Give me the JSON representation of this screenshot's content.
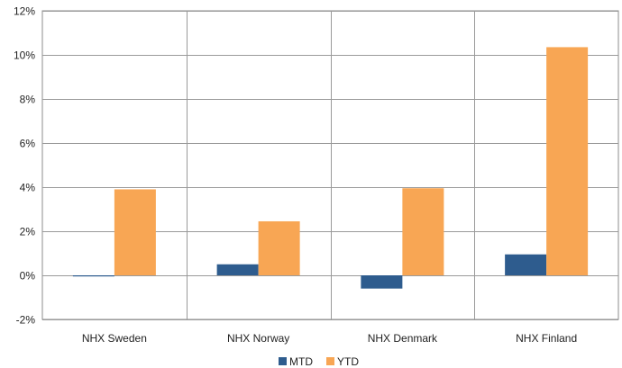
{
  "chart_data": {
    "type": "bar",
    "categories": [
      "NHX Sweden",
      "NHX Norway",
      "NHX Denmark",
      "NHX Finland"
    ],
    "series": [
      {
        "name": "MTD",
        "values": [
          -0.05,
          0.5,
          -0.6,
          0.95
        ],
        "color": "#2E5C8E"
      },
      {
        "name": "YTD",
        "values": [
          3.9,
          2.45,
          3.95,
          10.35
        ],
        "color": "#F8A654"
      }
    ],
    "y_ticks": [
      "-2%",
      "0%",
      "2%",
      "4%",
      "6%",
      "8%",
      "10%",
      "12%"
    ],
    "y_tick_values": [
      -2,
      0,
      2,
      4,
      6,
      8,
      10,
      12
    ],
    "ylim": [
      -2,
      12
    ],
    "grid": true,
    "legend_position": "bottom"
  }
}
